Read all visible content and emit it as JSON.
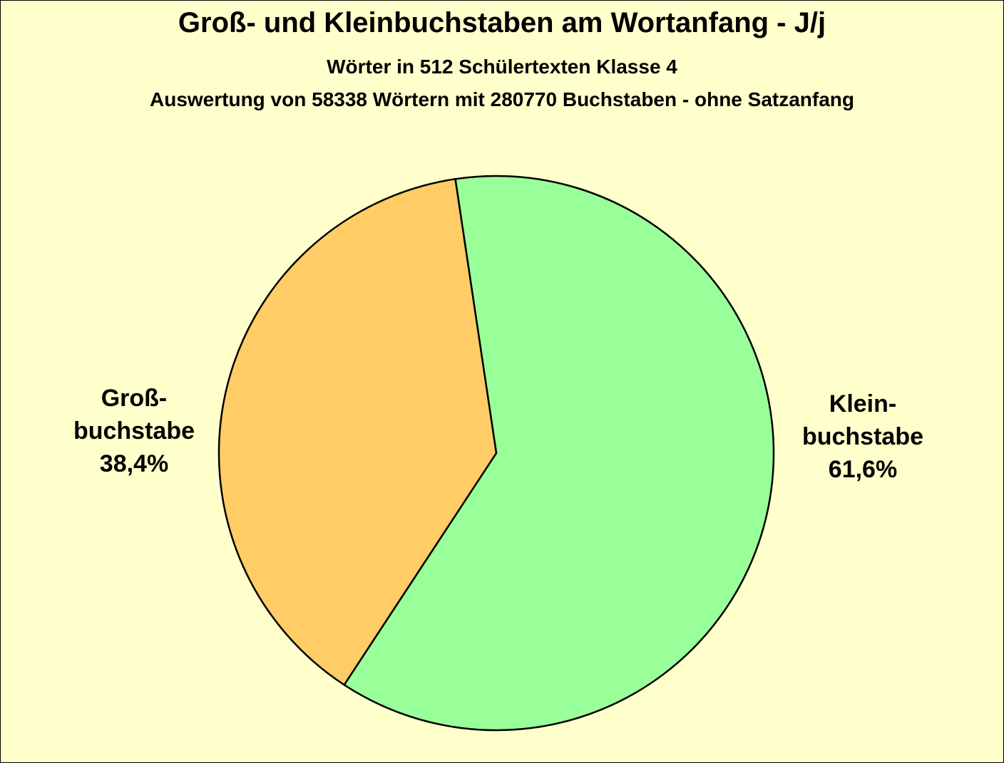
{
  "chart_data": {
    "type": "pie",
    "title": "Groß- und  Kleinbuchstaben am Wortanfang - J/j",
    "subtitle": "Wörter in 512 Schülertexten Klasse 4",
    "subtitle2": "Auswertung von 58338 Wörtern mit 280770 Buchstaben - ohne Satzanfang",
    "background_color": "#ffffcc",
    "slices": [
      {
        "label_lines": [
          "Klein-",
          "buchstabe",
          "61,6%"
        ],
        "value": 61.6,
        "color": "#99ff99"
      },
      {
        "label_lines": [
          "Groß-",
          "buchstabe",
          "38,4%"
        ],
        "value": 38.4,
        "color": "#ffcc66"
      }
    ]
  }
}
